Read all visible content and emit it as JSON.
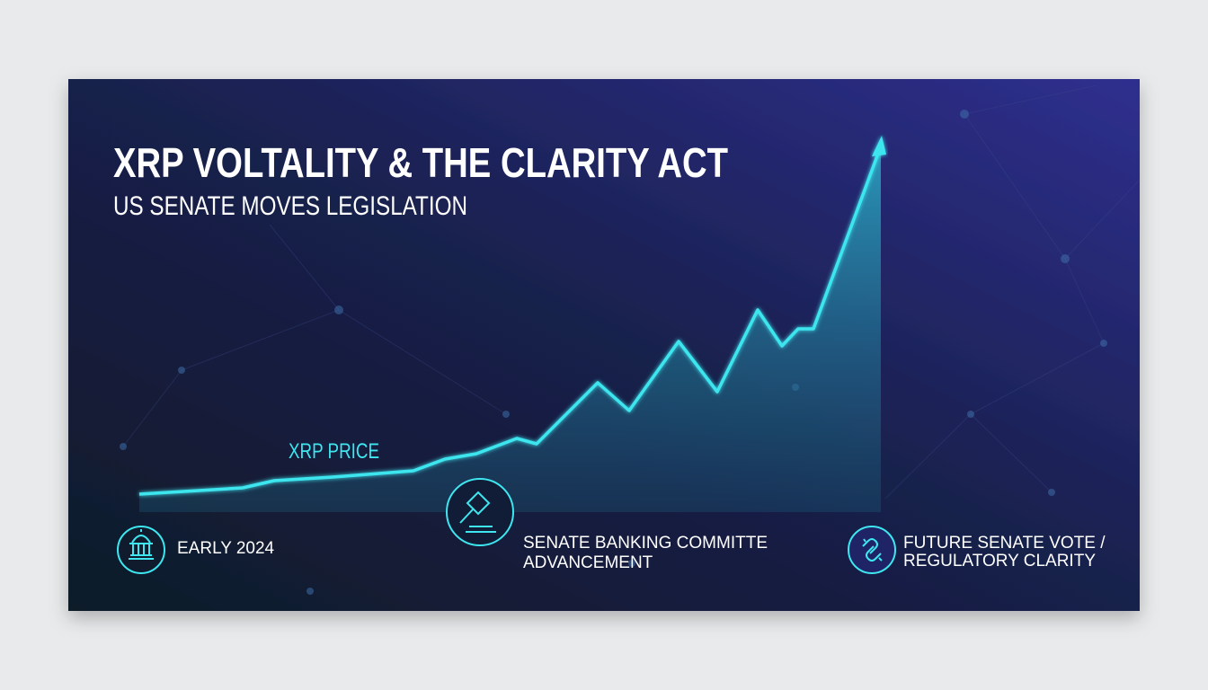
{
  "header": {
    "title": "XRP VOLTALITY & THE CLARITY ACT",
    "subtitle": "US SENATE MOVES LEGISLATION"
  },
  "chart_label": "XRP PRICE",
  "milestones": [
    {
      "lines": [
        "EARLY 2024"
      ]
    },
    {
      "lines": [
        "SENATE BANKING COMMITTE",
        "ADVANCEMENT"
      ]
    },
    {
      "lines": [
        "FUTURE SENATE VOTE /",
        "REGULATORY CLARITY"
      ]
    }
  ]
}
